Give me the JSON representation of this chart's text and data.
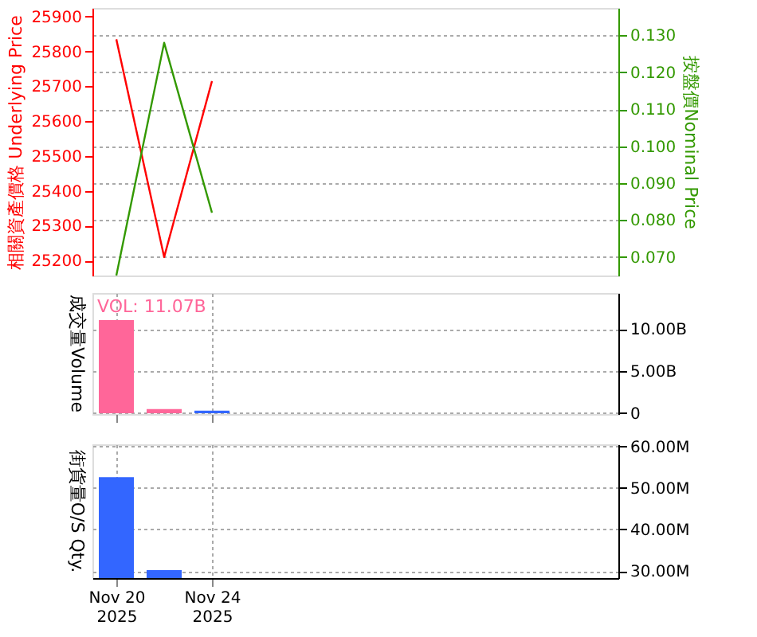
{
  "chart_data": [
    {
      "type": "line",
      "categories": [
        null,
        null,
        null,
        null,
        null,
        null,
        null,
        null,
        null,
        null,
        null
      ],
      "ylabel": "相關資產價格 Underlying Price",
      "y2label": "按盤價Nominal Price",
      "ylim": [
        25157,
        25925
      ],
      "yticks": [
        25200,
        25300,
        25400,
        25500,
        25600,
        25700,
        25800,
        25900
      ],
      "y2lim": [
        0.065,
        0.1374
      ],
      "y2ticks": [
        {
          "value": 0.07,
          "label": "0.070"
        },
        {
          "value": 0.08,
          "label": "0.080"
        },
        {
          "value": 0.09,
          "label": "0.090"
        },
        {
          "value": 0.1,
          "label": "0.100"
        },
        {
          "value": 0.11,
          "label": "0.110"
        },
        {
          "value": 0.12,
          "label": "0.120"
        },
        {
          "value": 0.13,
          "label": "0.130"
        }
      ],
      "grid": true,
      "tick_labels": "y",
      "series": [
        {
          "color": "#ff0000",
          "values": [
            25835,
            25210,
            25715,
            null,
            null,
            null,
            null,
            null,
            null,
            null,
            null
          ]
        },
        {
          "color": "#339900",
          "axis": "y2",
          "values": [
            0.065,
            0.128,
            0.082,
            null,
            null,
            null,
            null,
            null,
            null,
            null,
            null
          ]
        }
      ]
    },
    {
      "type": "bar",
      "categories": [
        null,
        null,
        null,
        null,
        null,
        null,
        null,
        null,
        null,
        null,
        null
      ],
      "ylabel": "成交量Volume",
      "ylim": [
        -0.1,
        14.3
      ],
      "yticks": [
        {
          "value": 0,
          "label": "0"
        },
        {
          "value": 5,
          "label": "5.00B"
        },
        {
          "value": 10,
          "label": "10.00B"
        }
      ],
      "grid": true,
      "tick_labels": "y",
      "annotations": [
        "VOL: 11.07B"
      ],
      "values": [
        11.07,
        0.5,
        0.3,
        null,
        null,
        null,
        null,
        null,
        null,
        null,
        null
      ],
      "colors": [
        "#ff6699",
        "#ff6699",
        "#3366ff",
        null,
        null,
        null,
        null,
        null,
        null,
        null,
        null
      ]
    },
    {
      "type": "bar",
      "categories": [
        "Nov 20\n2025",
        null,
        "Nov 24\n2025",
        null,
        null,
        null,
        null,
        null,
        null,
        null,
        null
      ],
      "ylabel": "街貨量O/S Qty.",
      "ylim": [
        28.3,
        60.5
      ],
      "yticks": [
        {
          "value": 30,
          "label": "30.00M"
        },
        {
          "value": 40,
          "label": "40.00M"
        },
        {
          "value": 50,
          "label": "50.00M"
        },
        {
          "value": 60,
          "label": "60.00M"
        }
      ],
      "grid": true,
      "values": [
        52.6,
        30.2,
        null,
        null,
        null,
        null,
        null,
        null,
        null,
        null,
        null
      ],
      "colors": [
        "#3366ff",
        "#3366ff",
        null,
        null,
        null,
        null,
        null,
        null,
        null,
        null,
        null
      ]
    }
  ]
}
